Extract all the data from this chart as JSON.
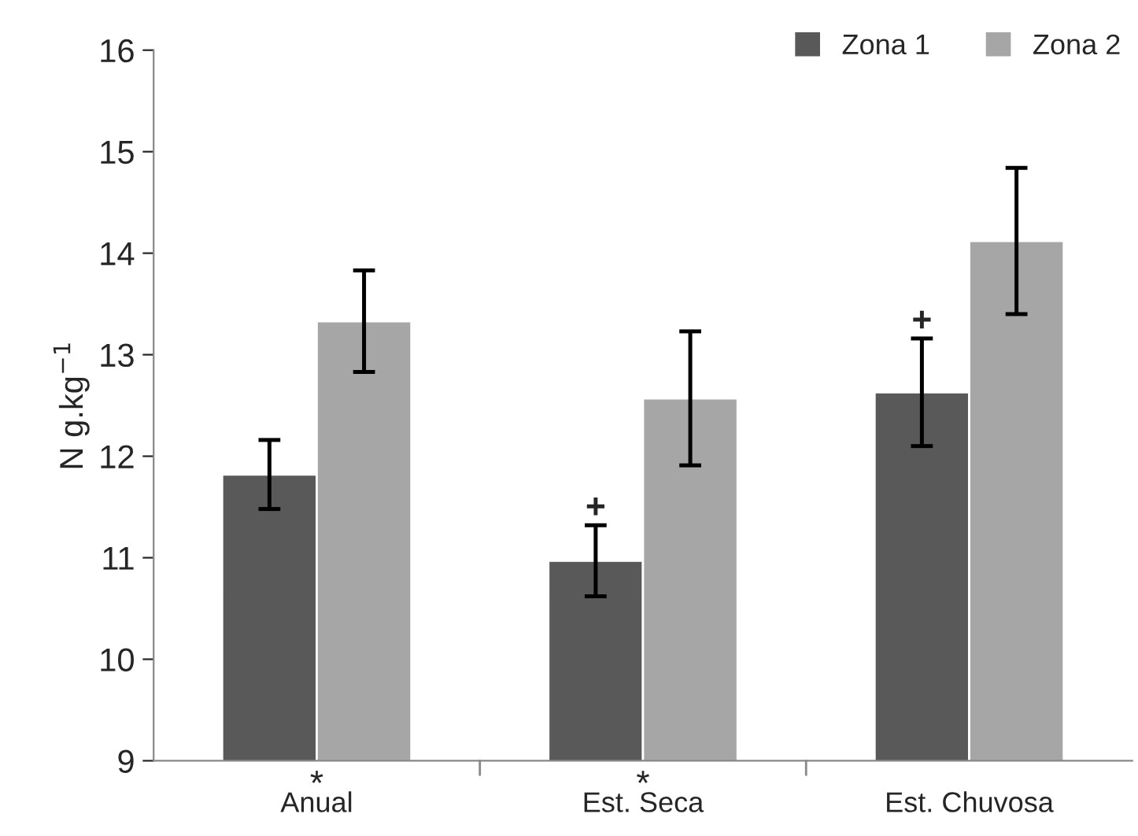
{
  "chart_data": {
    "type": "bar",
    "ylabel": "N g.kg$^{−1}$",
    "categories": [
      "Anual",
      "Est. Seca",
      "Est. Chuvosa"
    ],
    "series": [
      {
        "name": "Zona 1",
        "color": "#595959",
        "values": [
          11.82,
          10.97,
          12.63
        ],
        "errors": [
          0.34,
          0.35,
          0.53
        ]
      },
      {
        "name": "Zona 2",
        "color": "#a6a6a6",
        "values": [
          13.33,
          12.57,
          14.12
        ],
        "errors": [
          0.5,
          0.66,
          0.72
        ]
      }
    ],
    "ylim": [
      9,
      16
    ],
    "yticks": [
      9,
      10,
      11,
      12,
      13,
      14,
      15,
      16
    ],
    "grid": false,
    "legend": "top right",
    "annotations": [
      {
        "text": "*",
        "x": "Anual",
        "y": 9
      },
      {
        "text": "*",
        "x": "Est. Seca",
        "y": 9
      },
      {
        "text": "+",
        "x": "Est. Seca",
        "y": 11.32
      },
      {
        "text": "+",
        "x": "Est. Chuvosa",
        "y": 13.16
      }
    ]
  }
}
